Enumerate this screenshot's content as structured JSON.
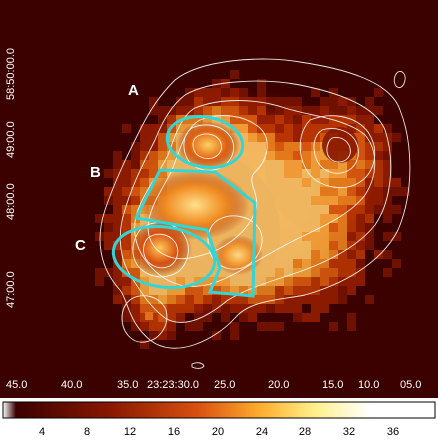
{
  "image": {
    "description": "X-ray surface brightness image with white contour overlays and cyan region outlines",
    "labels": {
      "A": "A",
      "B": "B",
      "C": "C"
    },
    "y_axis_ticks": [
      "58:50:00.0",
      "49:00.0",
      "48:00.0",
      "47:00.0"
    ],
    "x_axis_ticks": [
      "45.0",
      "40.0",
      "35.0",
      "23:23:30.0",
      "25.0",
      "20.0",
      "15.0",
      "10.0",
      "05.0"
    ],
    "colors": {
      "background": "#3b0000",
      "contour": "#ffffff",
      "region": "#33d6d6",
      "label": "#ffffff"
    }
  },
  "colorbar": {
    "ticks": [
      "4",
      "8",
      "12",
      "16",
      "20",
      "24",
      "28",
      "32",
      "36"
    ],
    "colors": [
      "#3b0000",
      "#7a1000",
      "#c03a00",
      "#f07a10",
      "#ffc040",
      "#fff090",
      "#ffffff"
    ]
  }
}
